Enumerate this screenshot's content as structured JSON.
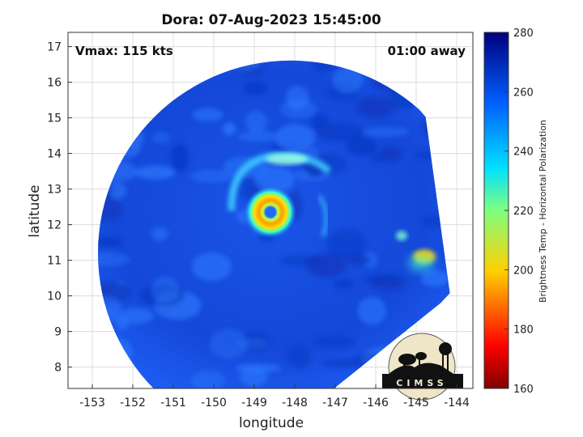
{
  "chart_data": {
    "type": "heatmap",
    "title": "Dora: 07-Aug-2023 15:45:00",
    "xlabel": "longitude",
    "ylabel": "latitude",
    "xlim": [
      -153.6,
      -143.6
    ],
    "ylim": [
      7.4,
      17.4
    ],
    "xticks": [
      -153,
      -152,
      -151,
      -150,
      -149,
      -148,
      -147,
      -146,
      -145,
      -144
    ],
    "yticks": [
      8,
      9,
      10,
      11,
      12,
      13,
      14,
      15,
      16,
      17
    ],
    "grid": true,
    "annotations": {
      "top_left": "Vmax: 115 kts",
      "top_right": "01:00 away"
    },
    "colorbar": {
      "label": "Brightness Temp - Horizontal Polarization",
      "min": 160,
      "max": 280,
      "ticks": [
        160,
        180,
        200,
        220,
        240,
        260,
        280
      ]
    },
    "storm_center": {
      "lon": -148.6,
      "lat": 12.35
    },
    "features": [
      {
        "name": "eye",
        "lon": -148.6,
        "lat": 12.35,
        "value": 250
      },
      {
        "name": "eyewall",
        "lon": -148.6,
        "lat": 12.35,
        "value": 195
      },
      {
        "name": "outer-band-north",
        "lon": -148.2,
        "lat": 13.75,
        "value": 230
      },
      {
        "name": "rainband-east",
        "lon": -144.8,
        "lat": 11.1,
        "value": 210
      }
    ],
    "background_value": 262
  },
  "logo": {
    "text": "CIMSS"
  }
}
